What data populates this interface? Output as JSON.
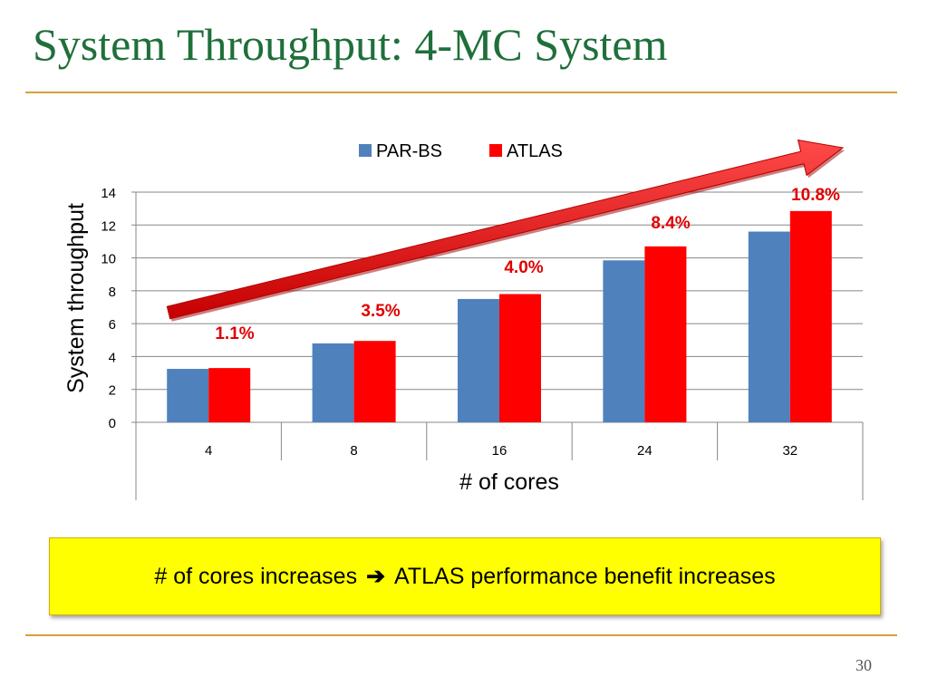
{
  "slide": {
    "title": "System Throughput: 4-MC System",
    "page_number": "30",
    "callout": {
      "left": "# of cores increases",
      "arrow": "➔",
      "right": "ATLAS performance benefit increases"
    },
    "colors": {
      "title": "#1f6f3a",
      "rule": "#d2a23a",
      "callout_bg": "#ffff00"
    }
  },
  "chart_data": {
    "type": "bar",
    "title": "",
    "xlabel": "# of cores",
    "ylabel": "System throughput",
    "categories": [
      "4",
      "8",
      "16",
      "24",
      "32"
    ],
    "series": [
      {
        "name": "PAR-BS",
        "color": "#4f81bd",
        "values": [
          3.25,
          4.8,
          7.5,
          9.85,
          11.6
        ]
      },
      {
        "name": "ATLAS",
        "color": "#ff0000",
        "values": [
          3.3,
          4.95,
          7.8,
          10.7,
          12.85
        ]
      }
    ],
    "ylim": [
      0,
      14
    ],
    "yticks": [
      0,
      2,
      4,
      6,
      8,
      10,
      12,
      14
    ],
    "grid": true,
    "legend_position": "top",
    "annotations": [
      "1.1%",
      "3.5%",
      "4.0%",
      "8.4%",
      "10.8%"
    ],
    "trend_arrow_color": "#ff0000"
  }
}
